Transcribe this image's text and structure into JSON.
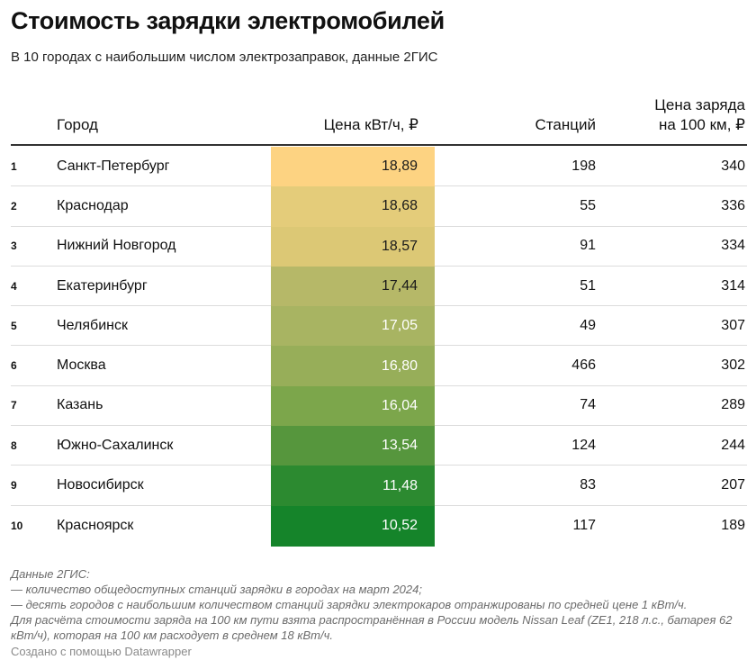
{
  "title": "Стоимость зарядки электромобилей",
  "subtitle": "В 10 городах с наибольшим числом электрозаправок, данные 2ГИС",
  "chart_data": {
    "type": "table",
    "columns": {
      "rank": "",
      "city": "Город",
      "price": "Цена кВт/ч, ₽",
      "stations": "Станций",
      "cost_line1": "Цена заряда",
      "cost_line2": "на 100 км, ₽"
    },
    "heatmap_column": "price",
    "heatmap_colors": {
      "high": "#fdd382",
      "low": "#15842a"
    },
    "rows": [
      {
        "rank": "1",
        "city": "Санкт-Петербург",
        "price": "18,89",
        "price_value": 18.89,
        "stations": "198",
        "cost": "340",
        "color": "#fdd382"
      },
      {
        "rank": "2",
        "city": "Краснодар",
        "price": "18,68",
        "price_value": 18.68,
        "stations": "55",
        "cost": "336",
        "color": "#e4cc7a"
      },
      {
        "rank": "3",
        "city": "Нижний Новгород",
        "price": "18,57",
        "price_value": 18.57,
        "stations": "91",
        "cost": "334",
        "color": "#dcc875"
      },
      {
        "rank": "4",
        "city": "Екатеринбург",
        "price": "17,44",
        "price_value": 17.44,
        "stations": "51",
        "cost": "314",
        "color": "#b6b868"
      },
      {
        "rank": "5",
        "city": "Челябинск",
        "price": "17,05",
        "price_value": 17.05,
        "stations": "49",
        "cost": "307",
        "color": "#a8b462"
      },
      {
        "rank": "6",
        "city": "Москва",
        "price": "16,80",
        "price_value": 16.8,
        "stations": "466",
        "cost": "302",
        "color": "#97ae59"
      },
      {
        "rank": "7",
        "city": "Казань",
        "price": "16,04",
        "price_value": 16.04,
        "stations": "74",
        "cost": "289",
        "color": "#7ca64b"
      },
      {
        "rank": "8",
        "city": "Южно-Сахалинск",
        "price": "13,54",
        "price_value": 13.54,
        "stations": "124",
        "cost": "244",
        "color": "#56963d"
      },
      {
        "rank": "9",
        "city": "Новосибирск",
        "price": "11,48",
        "price_value": 11.48,
        "stations": "83",
        "cost": "207",
        "color": "#2c8a30"
      },
      {
        "rank": "10",
        "city": "Красноярск",
        "price": "10,52",
        "price_value": 10.52,
        "stations": "117",
        "cost": "189",
        "color": "#15842a"
      }
    ]
  },
  "notes": [
    "Данные 2ГИС:",
    "— количество общедоступных станций зарядки в городах на март 2024;",
    "— десять городов с наибольшим количеством станций зарядки электрокаров отранжированы по средней цене 1 кВт/ч.",
    "Для расчёта стоимости заряда на 100 км пути взята распространённая в России модель Nissan Leaf (ZE1, 218 л.с., батарея 62 кВт/ч), которая на 100 км расходует в среднем 18 кВт/ч."
  ],
  "credit": "Создано с помощью Datawrapper"
}
